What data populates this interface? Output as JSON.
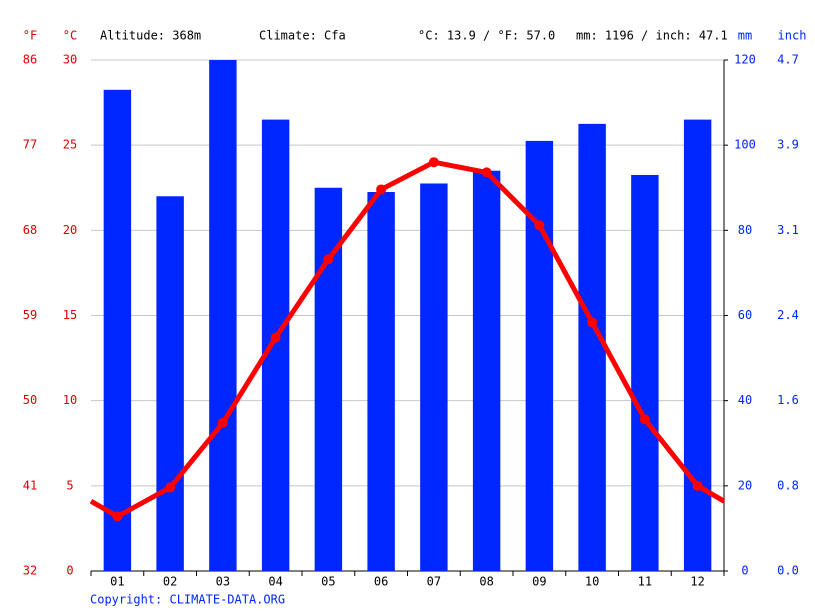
{
  "chart_data": {
    "type": "climate",
    "header": {
      "altitude": "Altitude: 368m",
      "climate": "Climate: Cfa",
      "temperature": "°C: 13.9 / °F: 57.0",
      "precipitation": "mm: 1196 / inch: 47.1"
    },
    "y_label_f": "°F",
    "y_label_c": "°C",
    "y2_label_mm": "mm",
    "y2_label_inch": "inch",
    "copyright": "Copyright: CLIMATE-DATA.ORG",
    "categories": [
      "01",
      "02",
      "03",
      "04",
      "05",
      "06",
      "07",
      "08",
      "09",
      "10",
      "11",
      "12"
    ],
    "series": [
      {
        "name": "Precipitation",
        "color": "#0026ff",
        "axis": "y2",
        "values": [
          113,
          88,
          120,
          106,
          90,
          89,
          91,
          94,
          101,
          105,
          93,
          106
        ]
      },
      {
        "name": "Temperature",
        "color": "#ff0000",
        "values": [
          3.2,
          4.9,
          8.7,
          13.7,
          18.3,
          22.4,
          24.0,
          23.4,
          20.3,
          14.6,
          8.9,
          5.0
        ]
      }
    ],
    "ylim": [
      0,
      30
    ],
    "yticks": [
      0,
      5,
      10,
      15,
      20,
      25,
      30
    ],
    "yticks_f": [
      32,
      41,
      50,
      59,
      68,
      77,
      86
    ],
    "y2lim": [
      0,
      120
    ],
    "y2ticks": [
      0,
      20,
      40,
      60,
      80,
      100,
      120
    ],
    "y2ticks_inch": [
      {
        "value": 0,
        "label": "0.0"
      },
      0.8,
      1.6,
      2.4,
      3.1,
      3.9,
      4.7
    ],
    "grid": true
  }
}
